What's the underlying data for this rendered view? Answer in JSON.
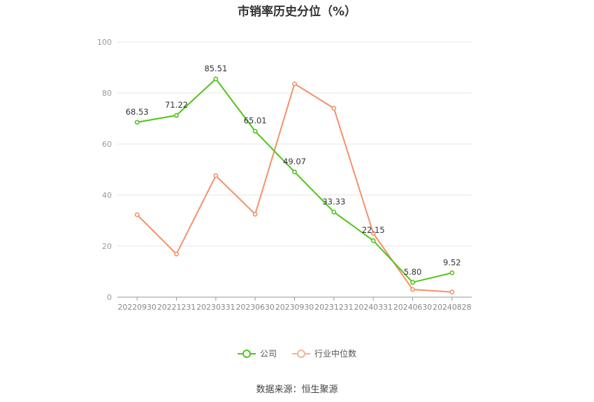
{
  "chart_data": {
    "type": "line",
    "title": "市销率历史分位（%）",
    "categories": [
      "20220930",
      "20221231",
      "20230331",
      "20230630",
      "20230930",
      "20231231",
      "20240331",
      "20240630",
      "20240828"
    ],
    "ylim": [
      0,
      100
    ],
    "yticks": [
      0,
      20,
      40,
      60,
      80,
      100
    ],
    "grid": true,
    "legend_position": "bottom",
    "series": [
      {
        "name": "公司",
        "color": "#52c41a",
        "values": [
          68.53,
          71.22,
          85.51,
          65.01,
          49.07,
          33.33,
          22.15,
          5.8,
          9.52
        ],
        "labels": [
          "68.53",
          "71.22",
          "85.51",
          "65.01",
          "49.07",
          "33.33",
          "22.15",
          "5.80",
          "9.52"
        ]
      },
      {
        "name": "行业中位数",
        "color": "#f4916b",
        "values": [
          32.3,
          16.9,
          47.6,
          32.5,
          83.6,
          74.0,
          25.0,
          3.0,
          2.0
        ]
      }
    ]
  },
  "source": "数据来源：恒生聚源"
}
